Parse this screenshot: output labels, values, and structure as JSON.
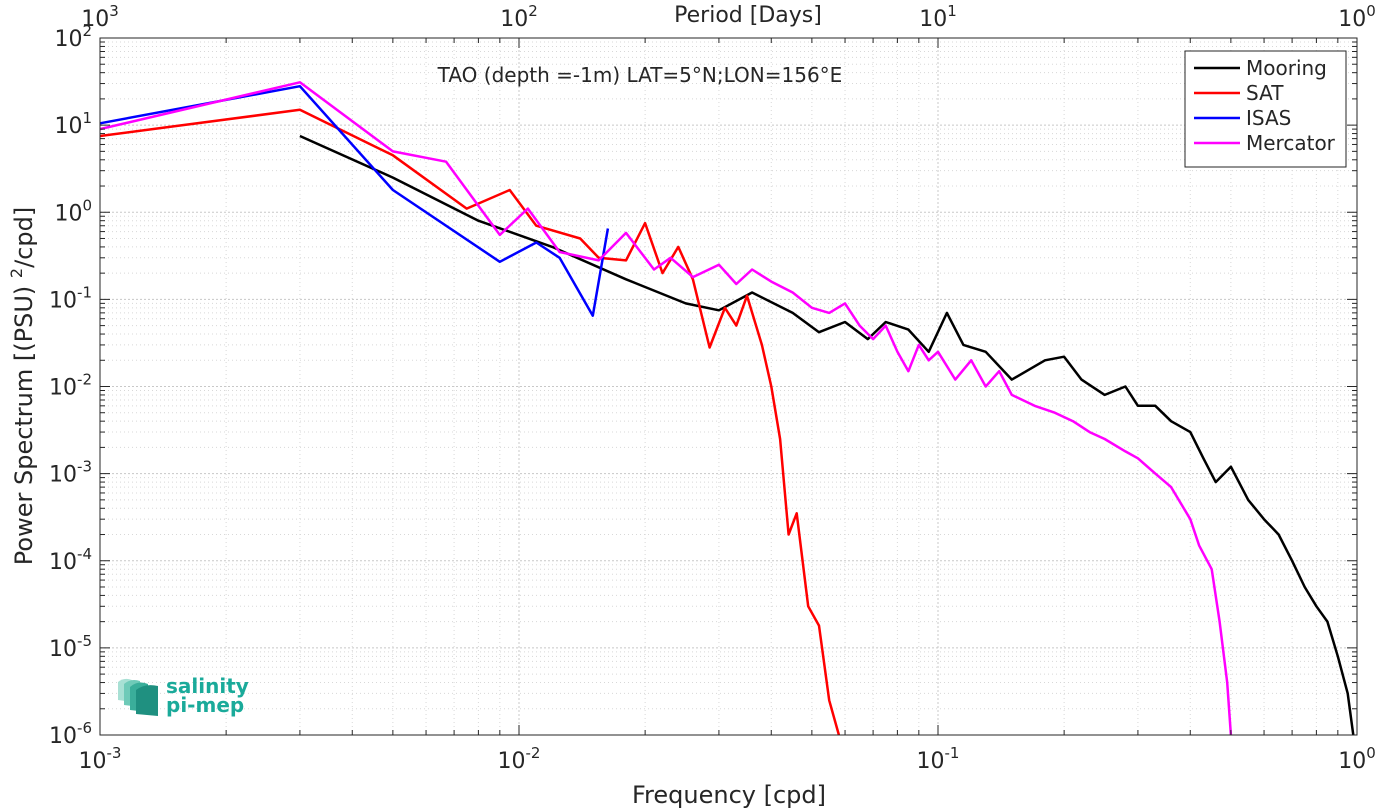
{
  "chart_data": {
    "type": "line",
    "title": "TAO (depth =-1m) LAT=5°N;LON=156°E",
    "xlabel": "Frequency [cpd]",
    "ylabel": "Power Spectrum [(PSU)²/cpd]",
    "x2label": "Period [Days]",
    "xscale": "log",
    "yscale": "log",
    "xlim": [
      0.001,
      1
    ],
    "ylim": [
      1e-06,
      100
    ],
    "x_ticks": [
      {
        "v": 0.001,
        "base": "10",
        "exp": "-3"
      },
      {
        "v": 0.01,
        "base": "10",
        "exp": "-2"
      },
      {
        "v": 0.1,
        "base": "10",
        "exp": "-1"
      },
      {
        "v": 1,
        "base": "10",
        "exp": "0"
      }
    ],
    "x2_ticks": [
      {
        "v": 0.001,
        "base": "10",
        "exp": "3"
      },
      {
        "v": 0.01,
        "base": "10",
        "exp": "2"
      },
      {
        "v": 0.1,
        "base": "10",
        "exp": "1"
      },
      {
        "v": 1,
        "base": "10",
        "exp": "0"
      }
    ],
    "y_ticks": [
      {
        "v": 100,
        "base": "10",
        "exp": "2"
      },
      {
        "v": 10,
        "base": "10",
        "exp": "1"
      },
      {
        "v": 1,
        "base": "10",
        "exp": "0"
      },
      {
        "v": 0.1,
        "base": "10",
        "exp": "-1"
      },
      {
        "v": 0.01,
        "base": "10",
        "exp": "-2"
      },
      {
        "v": 0.001,
        "base": "10",
        "exp": "-3"
      },
      {
        "v": 0.0001,
        "base": "10",
        "exp": "-4"
      },
      {
        "v": 1e-05,
        "base": "10",
        "exp": "-5"
      },
      {
        "v": 1e-06,
        "base": "10",
        "exp": "-6"
      }
    ],
    "grid": true,
    "legend_position": "top-right",
    "series": [
      {
        "name": "Mooring",
        "color": "#000000",
        "points": [
          [
            0.003,
            7.5
          ],
          [
            0.005,
            2.5
          ],
          [
            0.008,
            0.8
          ],
          [
            0.012,
            0.4
          ],
          [
            0.018,
            0.17
          ],
          [
            0.025,
            0.09
          ],
          [
            0.03,
            0.075
          ],
          [
            0.036,
            0.12
          ],
          [
            0.045,
            0.07
          ],
          [
            0.052,
            0.042
          ],
          [
            0.06,
            0.055
          ],
          [
            0.068,
            0.035
          ],
          [
            0.075,
            0.055
          ],
          [
            0.085,
            0.045
          ],
          [
            0.095,
            0.025
          ],
          [
            0.105,
            0.07
          ],
          [
            0.115,
            0.03
          ],
          [
            0.13,
            0.025
          ],
          [
            0.15,
            0.012
          ],
          [
            0.18,
            0.02
          ],
          [
            0.2,
            0.022
          ],
          [
            0.22,
            0.012
          ],
          [
            0.25,
            0.008
          ],
          [
            0.28,
            0.01
          ],
          [
            0.3,
            0.006
          ],
          [
            0.33,
            0.006
          ],
          [
            0.36,
            0.004
          ],
          [
            0.4,
            0.003
          ],
          [
            0.43,
            0.0015
          ],
          [
            0.46,
            0.0008
          ],
          [
            0.5,
            0.0012
          ],
          [
            0.55,
            0.0005
          ],
          [
            0.6,
            0.0003
          ],
          [
            0.65,
            0.0002
          ],
          [
            0.7,
            0.0001
          ],
          [
            0.75,
            5e-05
          ],
          [
            0.8,
            3e-05
          ],
          [
            0.85,
            2e-05
          ],
          [
            0.9,
            8e-06
          ],
          [
            0.95,
            3e-06
          ],
          [
            0.98,
            1e-06
          ]
        ]
      },
      {
        "name": "SAT",
        "color": "#ff0000",
        "points": [
          [
            0.001,
            7.5
          ],
          [
            0.003,
            15
          ],
          [
            0.005,
            4.5
          ],
          [
            0.0075,
            1.1
          ],
          [
            0.0095,
            1.8
          ],
          [
            0.011,
            0.7
          ],
          [
            0.014,
            0.5
          ],
          [
            0.0155,
            0.3
          ],
          [
            0.018,
            0.28
          ],
          [
            0.02,
            0.75
          ],
          [
            0.022,
            0.2
          ],
          [
            0.024,
            0.4
          ],
          [
            0.026,
            0.17
          ],
          [
            0.0285,
            0.028
          ],
          [
            0.031,
            0.08
          ],
          [
            0.033,
            0.05
          ],
          [
            0.035,
            0.11
          ],
          [
            0.038,
            0.03
          ],
          [
            0.04,
            0.01
          ],
          [
            0.042,
            0.0025
          ],
          [
            0.044,
            0.0002
          ],
          [
            0.046,
            0.00035
          ],
          [
            0.049,
            3e-05
          ],
          [
            0.052,
            1.8e-05
          ],
          [
            0.055,
            2.5e-06
          ],
          [
            0.058,
            1e-06
          ]
        ]
      },
      {
        "name": "ISAS",
        "color": "#0000ff",
        "points": [
          [
            0.001,
            10.5
          ],
          [
            0.003,
            28
          ],
          [
            0.005,
            1.8
          ],
          [
            0.009,
            0.27
          ],
          [
            0.011,
            0.45
          ],
          [
            0.0125,
            0.3
          ],
          [
            0.015,
            0.065
          ],
          [
            0.0163,
            0.65
          ]
        ]
      },
      {
        "name": "Mercator",
        "color": "#ff00ff",
        "points": [
          [
            0.001,
            9
          ],
          [
            0.003,
            31
          ],
          [
            0.005,
            5
          ],
          [
            0.0067,
            3.8
          ],
          [
            0.009,
            0.55
          ],
          [
            0.0105,
            1.1
          ],
          [
            0.0125,
            0.35
          ],
          [
            0.0155,
            0.28
          ],
          [
            0.018,
            0.58
          ],
          [
            0.021,
            0.22
          ],
          [
            0.023,
            0.3
          ],
          [
            0.026,
            0.18
          ],
          [
            0.03,
            0.25
          ],
          [
            0.033,
            0.15
          ],
          [
            0.036,
            0.22
          ],
          [
            0.04,
            0.16
          ],
          [
            0.045,
            0.12
          ],
          [
            0.05,
            0.08
          ],
          [
            0.055,
            0.07
          ],
          [
            0.06,
            0.09
          ],
          [
            0.065,
            0.05
          ],
          [
            0.07,
            0.035
          ],
          [
            0.075,
            0.05
          ],
          [
            0.08,
            0.025
          ],
          [
            0.085,
            0.015
          ],
          [
            0.09,
            0.03
          ],
          [
            0.095,
            0.02
          ],
          [
            0.1,
            0.025
          ],
          [
            0.11,
            0.012
          ],
          [
            0.12,
            0.02
          ],
          [
            0.13,
            0.01
          ],
          [
            0.14,
            0.015
          ],
          [
            0.15,
            0.008
          ],
          [
            0.17,
            0.006
          ],
          [
            0.19,
            0.005
          ],
          [
            0.21,
            0.004
          ],
          [
            0.23,
            0.003
          ],
          [
            0.25,
            0.0025
          ],
          [
            0.28,
            0.0018
          ],
          [
            0.3,
            0.0015
          ],
          [
            0.33,
            0.001
          ],
          [
            0.36,
            0.0007
          ],
          [
            0.4,
            0.0003
          ],
          [
            0.42,
            0.00015
          ],
          [
            0.45,
            8e-05
          ],
          [
            0.47,
            2e-05
          ],
          [
            0.49,
            4e-06
          ],
          [
            0.5,
            1e-06
          ]
        ]
      }
    ]
  },
  "logo": {
    "line1": "salinity",
    "line2": "pi-mep",
    "color": "#1aaa9a"
  }
}
